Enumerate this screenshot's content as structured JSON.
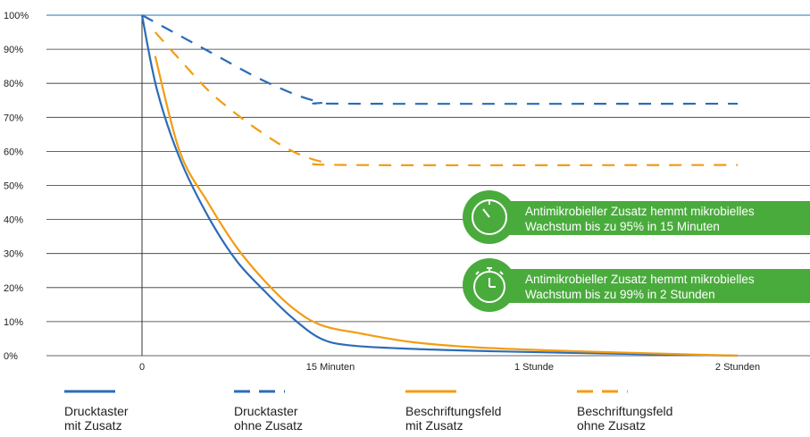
{
  "chart_data": {
    "type": "line",
    "ylim": [
      0,
      100
    ],
    "y_ticks": [
      "0%",
      "10%",
      "20%",
      "30%",
      "40%",
      "50%",
      "60%",
      "70%",
      "80%",
      "90%",
      "100%"
    ],
    "x_ticks": [
      {
        "pos": 0,
        "label": "0"
      },
      {
        "pos": 1,
        "label": "15 Minuten"
      },
      {
        "pos": 2,
        "label": "1 Stunde"
      },
      {
        "pos": 3,
        "label": "2 Stunden"
      }
    ],
    "grid": true,
    "series": [
      {
        "name": "Drucktaster\nmit Zusatz",
        "color": "#2b6cb8",
        "dash": "solid",
        "points": [
          [
            0,
            100
          ],
          [
            0.08,
            78
          ],
          [
            0.2,
            58
          ],
          [
            0.35,
            41
          ],
          [
            0.5,
            28
          ],
          [
            0.65,
            19
          ],
          [
            0.8,
            11
          ],
          [
            0.95,
            5
          ],
          [
            1.1,
            3
          ],
          [
            1.4,
            2
          ],
          [
            1.8,
            1.3
          ],
          [
            2.2,
            0.8
          ],
          [
            2.6,
            0.4
          ],
          [
            3,
            0
          ]
        ]
      },
      {
        "name": "Drucktaster\nohne Zusatz",
        "color": "#2b6cb8",
        "dash": "dashed",
        "points": [
          [
            0,
            100
          ],
          [
            0.2,
            94
          ],
          [
            0.4,
            88
          ],
          [
            0.6,
            82
          ],
          [
            0.8,
            77
          ],
          [
            0.95,
            74.5
          ],
          [
            1.1,
            74
          ],
          [
            3,
            74
          ]
        ]
      },
      {
        "name": "Beschriftungsfeld\nmit Zusatz",
        "color": "#f39c12",
        "dash": "solid",
        "points": [
          [
            0.07,
            88
          ],
          [
            0.2,
            60
          ],
          [
            0.35,
            45
          ],
          [
            0.5,
            32
          ],
          [
            0.65,
            22
          ],
          [
            0.8,
            14
          ],
          [
            0.95,
            9
          ],
          [
            1.15,
            6.5
          ],
          [
            1.4,
            4
          ],
          [
            1.7,
            2.5
          ],
          [
            2.1,
            1.5
          ],
          [
            2.5,
            0.8
          ],
          [
            3,
            0
          ]
        ]
      },
      {
        "name": "Beschriftungsfeld\nohne Zusatz",
        "color": "#f39c12",
        "dash": "dashed",
        "points": [
          [
            0.07,
            95
          ],
          [
            0.2,
            87
          ],
          [
            0.35,
            78
          ],
          [
            0.5,
            71
          ],
          [
            0.65,
            65
          ],
          [
            0.8,
            60
          ],
          [
            0.95,
            57
          ],
          [
            1.1,
            56
          ],
          [
            3,
            56
          ]
        ]
      }
    ]
  },
  "callouts": [
    {
      "icon": "timer-icon",
      "text": "Antimikrobieller Zusatz hemmt mikrobielles\nWachstum bis zu 95% in 15 Minuten"
    },
    {
      "icon": "stopwatch-icon",
      "text": "Antimikrobieller Zusatz hemmt mikrobielles\nWachstum bis zu 99% in 2 Stunden"
    }
  ],
  "colors": {
    "blue": "#2b6cb8",
    "orange": "#f39c12",
    "green": "#4aab3d",
    "grid": "#333333",
    "topline": "#2b6cb8"
  }
}
